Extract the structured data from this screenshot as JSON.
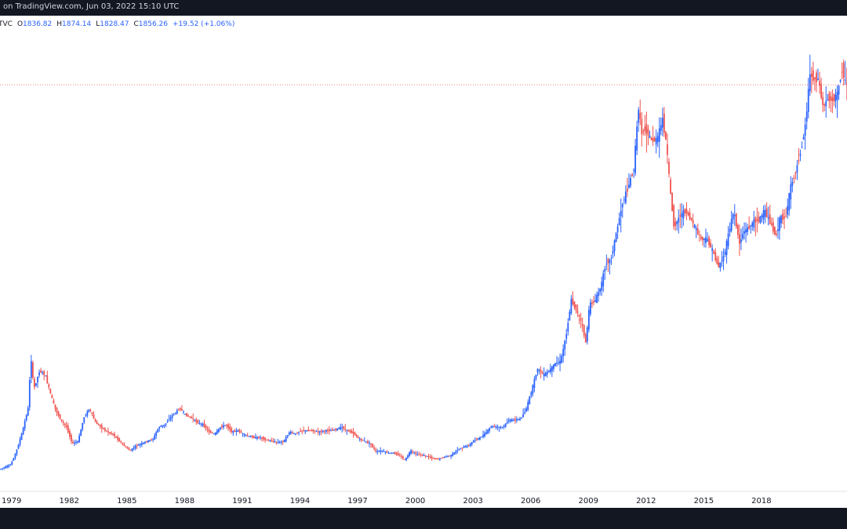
{
  "header": {
    "text": "on TradingView.com, Jun 03, 2022 15:10 UTC"
  },
  "legend": {
    "symbol": "TVC",
    "open_label": "O",
    "open": "1836.82",
    "high_label": "H",
    "high": "1874.14",
    "low_label": "L",
    "low": "1828.47",
    "close_label": "C",
    "close": "1856.26",
    "change": "+19.52 (+1.06%)"
  },
  "colors": {
    "up": "#2962ff",
    "down": "#ef5350",
    "axis_text": "#131722",
    "price_line": "#ef5350",
    "dark_bar": "#131722"
  },
  "chart_data": {
    "type": "candlestick",
    "title": "",
    "xlabel": "",
    "ylabel": "",
    "x_tick_labels": [
      "1979",
      "1982",
      "1985",
      "1988",
      "1991",
      "1994",
      "1997",
      "2000",
      "2003",
      "2006",
      "2009",
      "2012",
      "2015",
      "2018"
    ],
    "x_range": [
      1978.4,
      2022.45
    ],
    "y_range": [
      150,
      2150
    ],
    "current_price": 1856.26,
    "grid": false,
    "series": [
      {
        "values": [
          [
            1978.4,
            220
          ],
          [
            1979.0,
            240
          ],
          [
            1979.3,
            300
          ],
          [
            1979.6,
            380
          ],
          [
            1979.9,
            480
          ],
          [
            1980.05,
            700
          ],
          [
            1980.2,
            560
          ],
          [
            1980.5,
            640
          ],
          [
            1980.8,
            620
          ],
          [
            1981.0,
            560
          ],
          [
            1981.3,
            480
          ],
          [
            1981.6,
            430
          ],
          [
            1981.9,
            400
          ],
          [
            1982.2,
            330
          ],
          [
            1982.5,
            340
          ],
          [
            1982.8,
            440
          ],
          [
            1983.1,
            480
          ],
          [
            1983.4,
            420
          ],
          [
            1983.7,
            400
          ],
          [
            1984.0,
            380
          ],
          [
            1984.3,
            370
          ],
          [
            1984.6,
            345
          ],
          [
            1984.9,
            320
          ],
          [
            1985.2,
            300
          ],
          [
            1985.5,
            320
          ],
          [
            1985.8,
            330
          ],
          [
            1986.1,
            340
          ],
          [
            1986.4,
            350
          ],
          [
            1986.7,
            400
          ],
          [
            1987.0,
            410
          ],
          [
            1987.4,
            450
          ],
          [
            1987.8,
            480
          ],
          [
            1988.1,
            450
          ],
          [
            1988.4,
            440
          ],
          [
            1988.7,
            420
          ],
          [
            1989.0,
            410
          ],
          [
            1989.3,
            380
          ],
          [
            1989.6,
            370
          ],
          [
            1989.9,
            400
          ],
          [
            1990.2,
            410
          ],
          [
            1990.5,
            380
          ],
          [
            1990.8,
            385
          ],
          [
            1991.1,
            370
          ],
          [
            1991.4,
            360
          ],
          [
            1991.7,
            355
          ],
          [
            1992.0,
            355
          ],
          [
            1992.3,
            345
          ],
          [
            1992.6,
            340
          ],
          [
            1992.9,
            335
          ],
          [
            1993.2,
            340
          ],
          [
            1993.5,
            380
          ],
          [
            1993.8,
            370
          ],
          [
            1994.1,
            385
          ],
          [
            1994.4,
            385
          ],
          [
            1994.7,
            385
          ],
          [
            1995.0,
            380
          ],
          [
            1995.3,
            385
          ],
          [
            1995.6,
            385
          ],
          [
            1995.9,
            390
          ],
          [
            1996.2,
            400
          ],
          [
            1996.5,
            385
          ],
          [
            1996.8,
            375
          ],
          [
            1997.1,
            350
          ],
          [
            1997.4,
            340
          ],
          [
            1997.7,
            330
          ],
          [
            1998.0,
            295
          ],
          [
            1998.3,
            300
          ],
          [
            1998.6,
            290
          ],
          [
            1998.9,
            290
          ],
          [
            1999.2,
            280
          ],
          [
            1999.5,
            260
          ],
          [
            1999.8,
            300
          ],
          [
            2000.1,
            285
          ],
          [
            2000.4,
            280
          ],
          [
            2000.7,
            275
          ],
          [
            2001.0,
            265
          ],
          [
            2001.3,
            265
          ],
          [
            2001.6,
            275
          ],
          [
            2001.9,
            280
          ],
          [
            2002.2,
            300
          ],
          [
            2002.5,
            315
          ],
          [
            2002.8,
            320
          ],
          [
            2003.1,
            345
          ],
          [
            2003.4,
            355
          ],
          [
            2003.7,
            375
          ],
          [
            2004.0,
            405
          ],
          [
            2004.3,
            400
          ],
          [
            2004.6,
            400
          ],
          [
            2004.9,
            430
          ],
          [
            2005.2,
            430
          ],
          [
            2005.5,
            435
          ],
          [
            2005.8,
            475
          ],
          [
            2006.1,
            560
          ],
          [
            2006.4,
            650
          ],
          [
            2006.7,
            620
          ],
          [
            2007.0,
            640
          ],
          [
            2007.3,
            670
          ],
          [
            2007.6,
            680
          ],
          [
            2007.9,
            800
          ],
          [
            2008.15,
            940
          ],
          [
            2008.4,
            900
          ],
          [
            2008.7,
            840
          ],
          [
            2008.9,
            760
          ],
          [
            2009.1,
            920
          ],
          [
            2009.4,
            940
          ],
          [
            2009.7,
            1000
          ],
          [
            2009.95,
            1100
          ],
          [
            2010.2,
            1110
          ],
          [
            2010.5,
            1230
          ],
          [
            2010.8,
            1350
          ],
          [
            2011.1,
            1420
          ],
          [
            2011.4,
            1500
          ],
          [
            2011.65,
            1760
          ],
          [
            2011.8,
            1650
          ],
          [
            2012.0,
            1670
          ],
          [
            2012.3,
            1620
          ],
          [
            2012.6,
            1620
          ],
          [
            2012.9,
            1710
          ],
          [
            2013.1,
            1600
          ],
          [
            2013.3,
            1400
          ],
          [
            2013.5,
            1250
          ],
          [
            2013.8,
            1300
          ],
          [
            2014.1,
            1320
          ],
          [
            2014.4,
            1280
          ],
          [
            2014.7,
            1230
          ],
          [
            2014.9,
            1200
          ],
          [
            2015.2,
            1200
          ],
          [
            2015.5,
            1150
          ],
          [
            2015.8,
            1080
          ],
          [
            2016.1,
            1130
          ],
          [
            2016.4,
            1250
          ],
          [
            2016.6,
            1320
          ],
          [
            2016.9,
            1180
          ],
          [
            2017.1,
            1230
          ],
          [
            2017.4,
            1250
          ],
          [
            2017.7,
            1280
          ],
          [
            2017.9,
            1280
          ],
          [
            2018.2,
            1320
          ],
          [
            2018.5,
            1270
          ],
          [
            2018.8,
            1210
          ],
          [
            2019.0,
            1290
          ],
          [
            2019.3,
            1290
          ],
          [
            2019.55,
            1420
          ],
          [
            2019.8,
            1480
          ],
          [
            2020.1,
            1580
          ],
          [
            2020.35,
            1700
          ],
          [
            2020.55,
            1900
          ],
          [
            2020.8,
            1880
          ],
          [
            2021.0,
            1880
          ],
          [
            2021.25,
            1760
          ],
          [
            2021.5,
            1800
          ],
          [
            2021.75,
            1790
          ],
          [
            2022.0,
            1820
          ],
          [
            2022.25,
            1930
          ],
          [
            2022.42,
            1856
          ]
        ]
      }
    ]
  }
}
